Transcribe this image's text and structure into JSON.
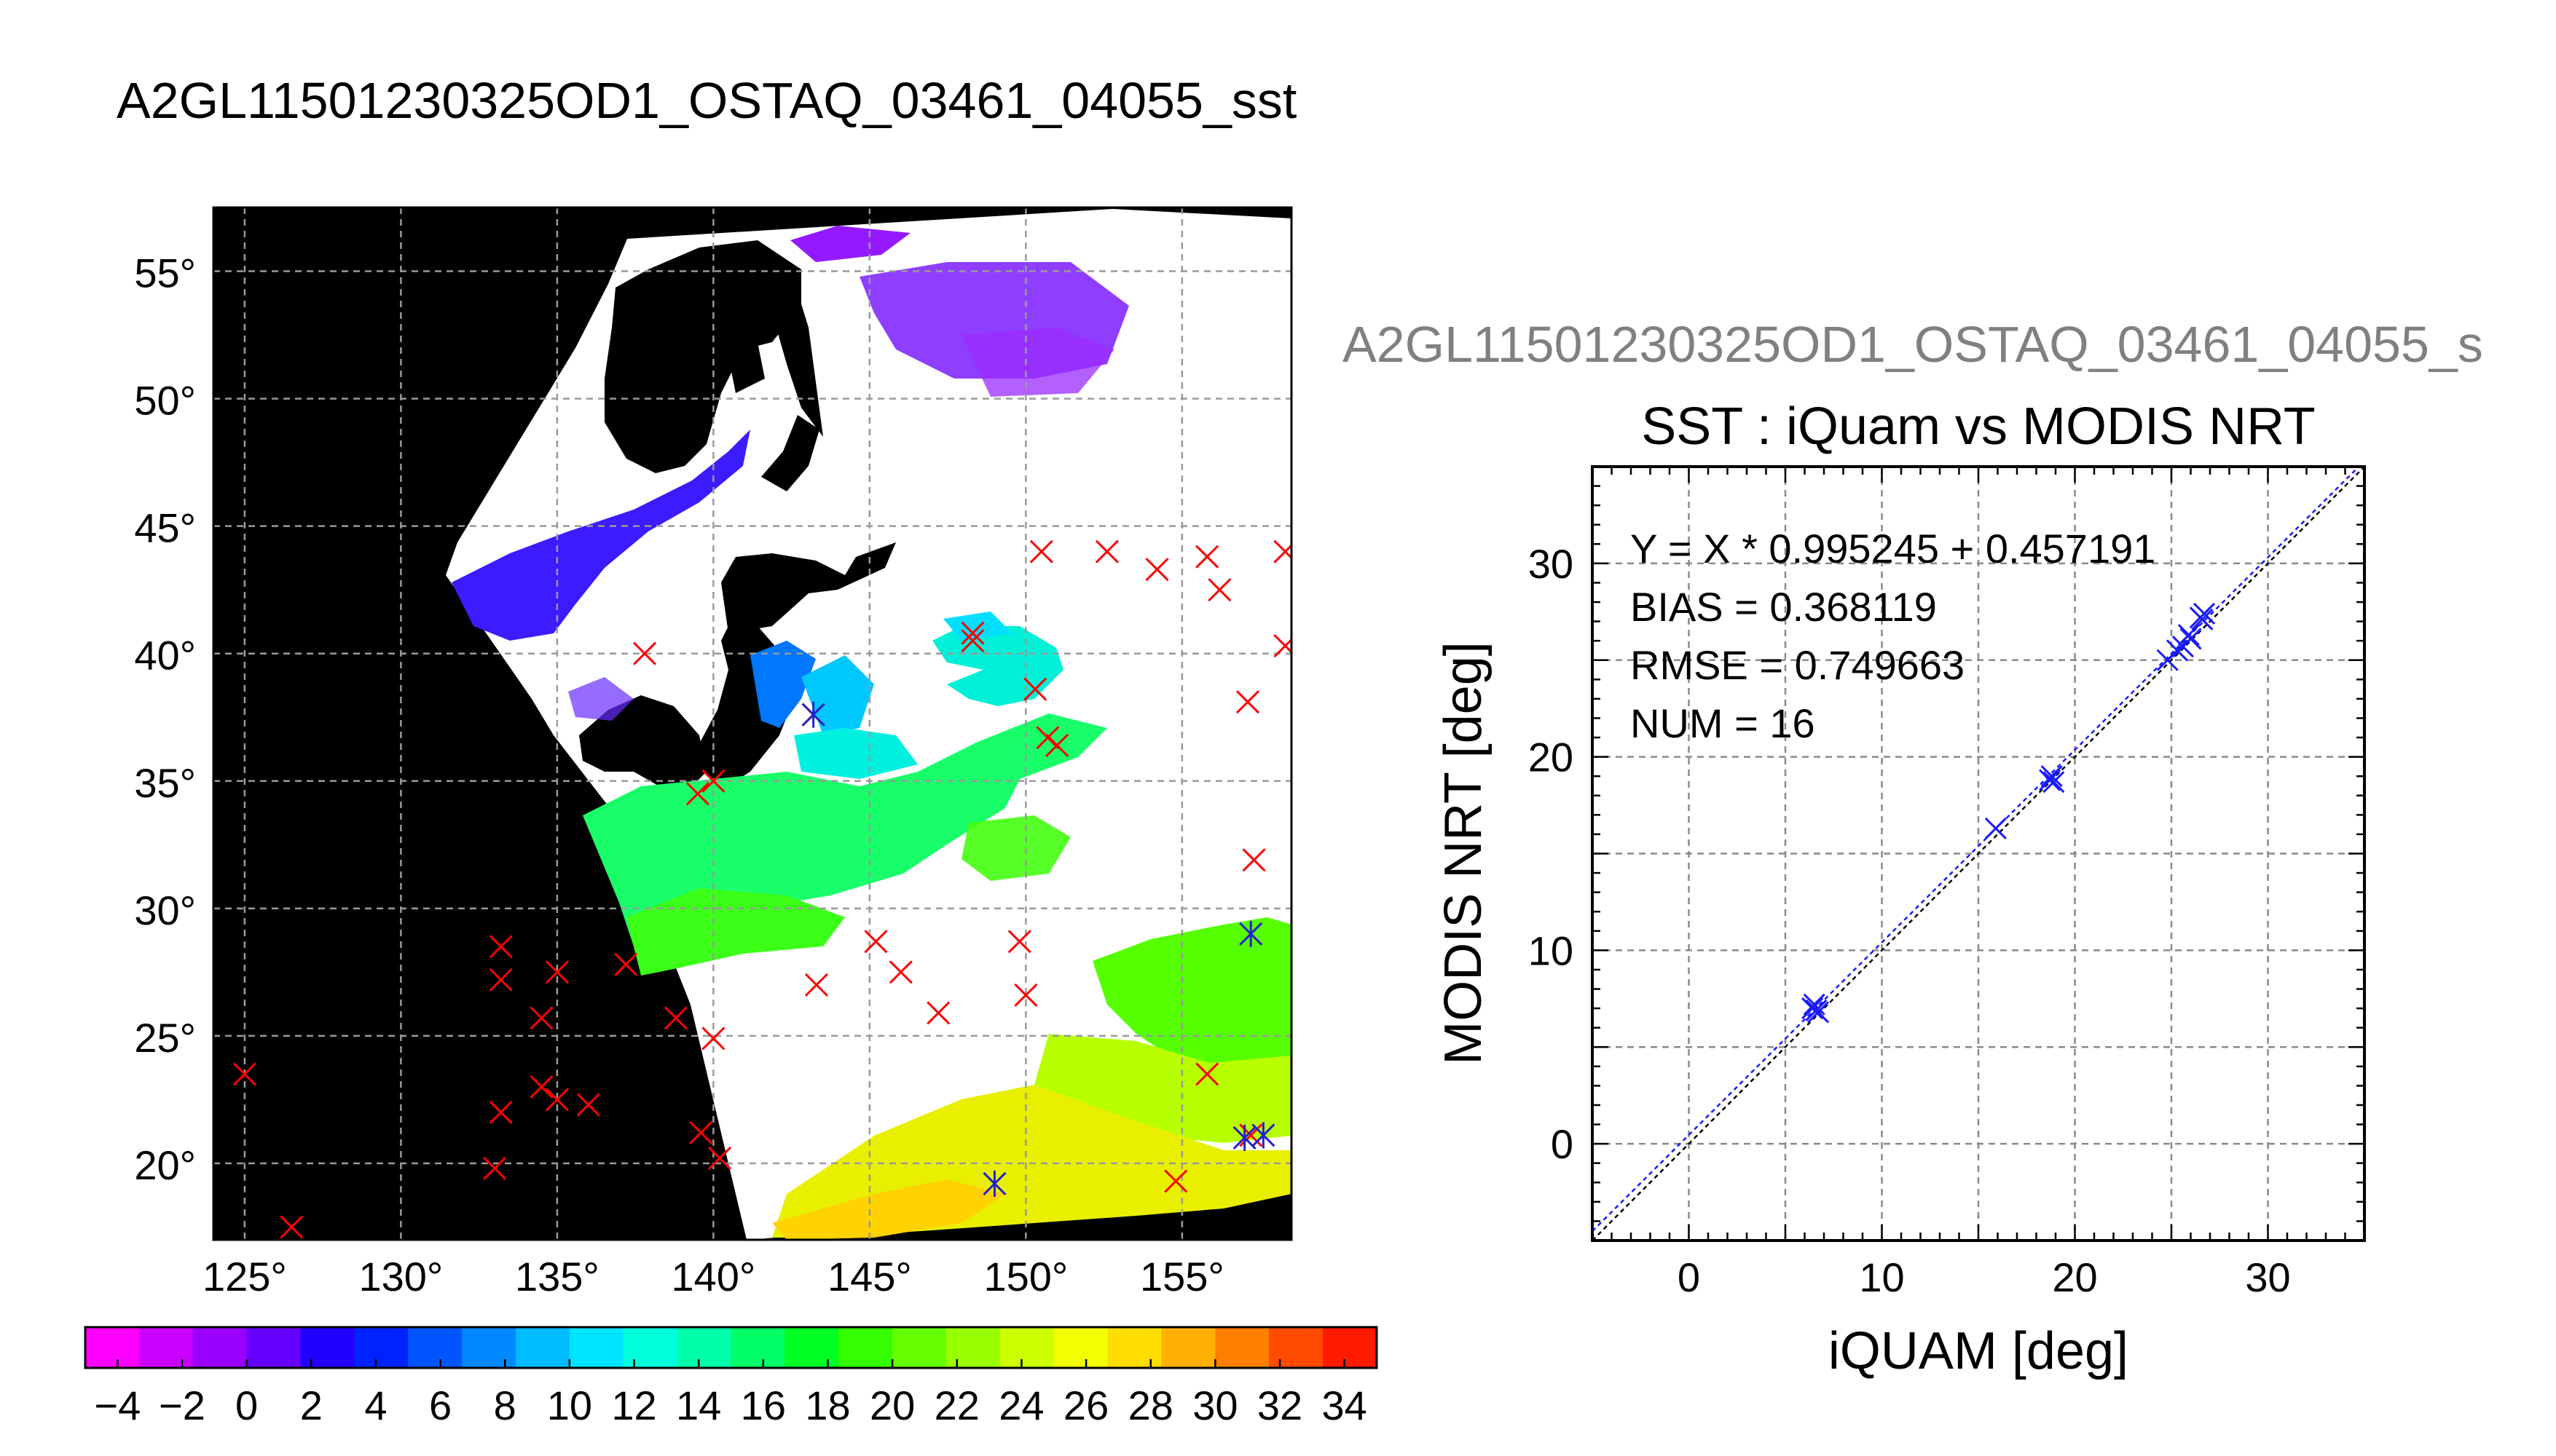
{
  "figure": {
    "title": "A2GL11501230325OD1_OSTAQ_03461_04055_sst",
    "right_title": "A2GL11501230325OD1_OSTAQ_03461_04055_s"
  },
  "map": {
    "lon_ticks": [
      125,
      130,
      135,
      140,
      145,
      150,
      155
    ],
    "lat_ticks": [
      20,
      25,
      30,
      35,
      40,
      45,
      50,
      55
    ],
    "lon_range": [
      124,
      158.5
    ],
    "lat_range": [
      17,
      57.5
    ],
    "degree_symbol": "°",
    "grid": true,
    "obs_red": [
      [
        125,
        23.5
      ],
      [
        126.5,
        17.5
      ],
      [
        133.2,
        28.5
      ],
      [
        133.2,
        27.2
      ],
      [
        133.2,
        22
      ],
      [
        133,
        19.8
      ],
      [
        134.5,
        25.7
      ],
      [
        134.5,
        23
      ],
      [
        135,
        27.5
      ],
      [
        135,
        22.5
      ],
      [
        136,
        22.3
      ],
      [
        137.2,
        27.8
      ],
      [
        137.8,
        40
      ],
      [
        138.8,
        25.7
      ],
      [
        139.5,
        34.5
      ],
      [
        139.6,
        21.2
      ],
      [
        140,
        24.9
      ],
      [
        140,
        35
      ],
      [
        140.2,
        20.2
      ],
      [
        143.2,
        37.6
      ],
      [
        143.3,
        27
      ],
      [
        145.2,
        28.7
      ],
      [
        146,
        27.5
      ],
      [
        147.2,
        25.9
      ],
      [
        148.3,
        40.5
      ],
      [
        148.3,
        40.8
      ],
      [
        149.8,
        28.7
      ],
      [
        150,
        26.6
      ],
      [
        150.3,
        38.6
      ],
      [
        150.5,
        44
      ],
      [
        150.7,
        36.7
      ],
      [
        151,
        36.4
      ],
      [
        152.6,
        44
      ],
      [
        154.2,
        43.3
      ],
      [
        154.8,
        19.3
      ],
      [
        155.8,
        23.5
      ],
      [
        155.8,
        43.8
      ],
      [
        156.2,
        42.5
      ],
      [
        157.1,
        38.1
      ],
      [
        157.3,
        31.9
      ],
      [
        157.2,
        21.1
      ],
      [
        158.3,
        44
      ],
      [
        158.3,
        40.3
      ]
    ],
    "obs_blue": [
      [
        143.2,
        37.6
      ],
      [
        149,
        19.2
      ],
      [
        157.2,
        29
      ],
      [
        157,
        21
      ],
      [
        157.6,
        21.1
      ]
    ]
  },
  "colorbar": {
    "ticks": [
      -4,
      -2,
      0,
      2,
      4,
      6,
      8,
      10,
      12,
      14,
      16,
      18,
      20,
      22,
      24,
      26,
      28,
      30,
      32,
      34
    ],
    "labels": [
      "−4",
      "−2",
      "0",
      "2",
      "4",
      "6",
      "8",
      "10",
      "12",
      "14",
      "16",
      "18",
      "20",
      "22",
      "24",
      "26",
      "28",
      "30",
      "32",
      "34"
    ],
    "range": [
      -5,
      35
    ],
    "colors": [
      "#ff00ff",
      "#cc00ff",
      "#9900ff",
      "#6600ff",
      "#2200ff",
      "#0022ff",
      "#0055ff",
      "#0088ff",
      "#00bbff",
      "#00e5ff",
      "#00ffdd",
      "#00ffaa",
      "#00ff66",
      "#00ff22",
      "#33ff00",
      "#66ff00",
      "#99ff00",
      "#ccff00",
      "#f2ff00",
      "#ffdd00",
      "#ffb000",
      "#ff7f00",
      "#ff4a00",
      "#ff1a00"
    ]
  },
  "chart_data": {
    "type": "scatter",
    "title": "SST : iQuam vs MODIS NRT",
    "xlabel": "iQUAM [deg]",
    "ylabel": "MODIS NRT [deg]",
    "xlim": [
      -5,
      35
    ],
    "ylim": [
      -5,
      35
    ],
    "xticks": [
      0,
      10,
      20,
      30
    ],
    "yticks": [
      0,
      10,
      20,
      30
    ],
    "grid": true,
    "annotations": [
      "Y = X * 0.995245 + 0.457191",
      "BIAS = 0.368119",
      "RMSE = 0.749663",
      "NUM = 16"
    ],
    "regression": {
      "slope": 0.995245,
      "intercept": 0.457191
    },
    "points": [
      [
        6.5,
        7.2
      ],
      [
        6.6,
        6.9
      ],
      [
        6.7,
        6.8
      ],
      [
        15.9,
        16.3
      ],
      [
        18.7,
        18.8
      ],
      [
        18.8,
        19.0
      ],
      [
        24.8,
        25.0
      ],
      [
        25.3,
        25.5
      ],
      [
        25.6,
        25.7
      ],
      [
        26.0,
        26.1
      ],
      [
        26.5,
        27.2
      ],
      [
        26.7,
        27.4
      ],
      [
        26.6,
        27.1
      ],
      [
        25.9,
        26.3
      ],
      [
        18.9,
        18.7
      ],
      [
        6.4,
        7.0
      ]
    ]
  }
}
